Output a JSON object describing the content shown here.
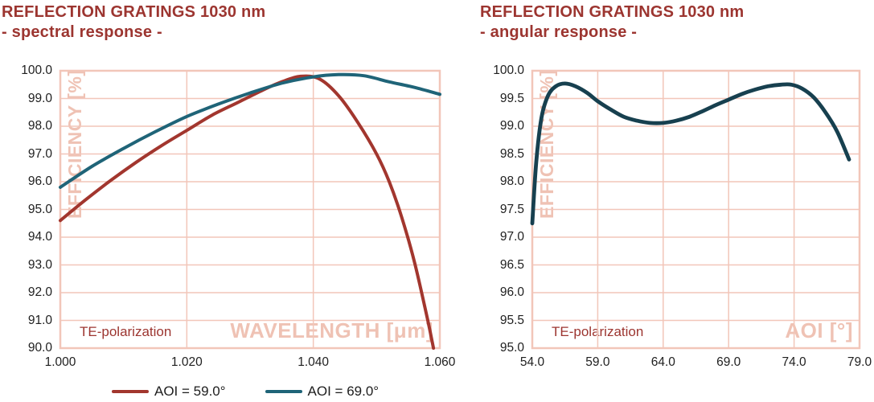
{
  "colors": {
    "accent": "#9c3530",
    "grid": "#f2c6b9",
    "watermark": "#efc2b4",
    "tick": "#1f1f1f",
    "red_series": "#a2362e",
    "teal_series": "#1f6478",
    "navy_series": "#17404f"
  },
  "legend": {
    "items": [
      {
        "id": "aoi-59",
        "label": "AOI = 59.0°",
        "color": "#a2362e"
      },
      {
        "id": "aoi-69",
        "label": "AOI = 69.0°",
        "color": "#1f6478"
      }
    ]
  },
  "chart_data": [
    {
      "type": "line",
      "title": "REFLECTION GRATINGS 1030 nm",
      "subtitle": "- spectral response -",
      "annotation": "TE-polarization",
      "xlabel": "WAVELENGTH [μm]",
      "ylabel": "EFFICIENCY [%]",
      "xlim": [
        1.0,
        1.06
      ],
      "ylim": [
        90.0,
        100.0
      ],
      "grid": true,
      "legend_position": "bottom",
      "xticks": {
        "values": [
          1.0,
          1.02,
          1.04,
          1.06
        ],
        "labels": [
          "1.000",
          "1.020",
          "1.040",
          "1.060"
        ]
      },
      "yticks": {
        "values": [
          100.0,
          99.0,
          98.0,
          97.0,
          96.0,
          95.0,
          94.0,
          93.0,
          92.0,
          91.0,
          90.0
        ],
        "labels": [
          "100.0",
          "99.0",
          "98.0",
          "97.0",
          "96.0",
          "95.0",
          "94.0",
          "93.0",
          "92.0",
          "91.0",
          "90.0"
        ]
      },
      "series": [
        {
          "id": "aoi-59",
          "name": "AOI = 59.0°",
          "color": "#a2362e",
          "x": [
            1.0,
            1.004,
            1.008,
            1.012,
            1.016,
            1.02,
            1.024,
            1.028,
            1.032,
            1.035,
            1.038,
            1.041,
            1.044,
            1.047,
            1.05,
            1.052,
            1.054,
            1.056,
            1.058,
            1.059
          ],
          "y": [
            94.6,
            95.35,
            96.05,
            96.7,
            97.3,
            97.85,
            98.4,
            98.85,
            99.3,
            99.6,
            99.8,
            99.7,
            99.1,
            98.15,
            97.0,
            96.0,
            94.7,
            93.1,
            91.1,
            90.0
          ]
        },
        {
          "id": "aoi-69",
          "name": "AOI = 69.0°",
          "color": "#1f6478",
          "x": [
            1.0,
            1.005,
            1.01,
            1.015,
            1.02,
            1.025,
            1.03,
            1.035,
            1.04,
            1.044,
            1.048,
            1.052,
            1.056,
            1.06
          ],
          "y": [
            95.8,
            96.55,
            97.2,
            97.8,
            98.35,
            98.8,
            99.2,
            99.55,
            99.78,
            99.86,
            99.82,
            99.6,
            99.4,
            99.15
          ]
        }
      ]
    },
    {
      "type": "line",
      "title": "REFLECTION GRATINGS 1030 nm",
      "subtitle": "- angular response -",
      "annotation": "TE-polarization",
      "xlabel": "AOI [°]",
      "ylabel": "EFFICIENCY [%]",
      "xlim": [
        54.0,
        79.0
      ],
      "ylim": [
        95.0,
        100.0
      ],
      "grid": true,
      "xticks": {
        "values": [
          54.0,
          59.0,
          64.0,
          69.0,
          74.0,
          79.0
        ],
        "labels": [
          "54.0",
          "59.0",
          "64.0",
          "69.0",
          "74.0",
          "79.0"
        ]
      },
      "yticks": {
        "values": [
          100.0,
          99.5,
          99.0,
          98.5,
          98.0,
          97.5,
          97.0,
          96.5,
          96.0,
          95.5,
          95.0
        ],
        "labels": [
          "100.0",
          "99.5",
          "99.0",
          "98.5",
          "98.0",
          "97.5",
          "97.0",
          "96.5",
          "96.0",
          "95.5",
          "95.0"
        ]
      },
      "series": [
        {
          "id": "angular-sweep",
          "name": "",
          "color": "#17404f",
          "x": [
            54.0,
            54.3,
            54.7,
            55.2,
            55.8,
            56.5,
            57.3,
            58.2,
            59.0,
            60.0,
            61.0,
            62.0,
            63.0,
            64.0,
            65.0,
            66.0,
            67.0,
            68.0,
            69.0,
            70.0,
            71.0,
            72.0,
            73.0,
            73.8,
            74.6,
            75.5,
            76.4,
            77.3,
            78.2
          ],
          "y": [
            97.25,
            98.35,
            99.15,
            99.55,
            99.72,
            99.77,
            99.72,
            99.6,
            99.45,
            99.3,
            99.17,
            99.1,
            99.06,
            99.06,
            99.1,
            99.17,
            99.27,
            99.38,
            99.48,
            99.58,
            99.66,
            99.72,
            99.75,
            99.75,
            99.68,
            99.52,
            99.25,
            98.9,
            98.4
          ]
        }
      ]
    }
  ]
}
